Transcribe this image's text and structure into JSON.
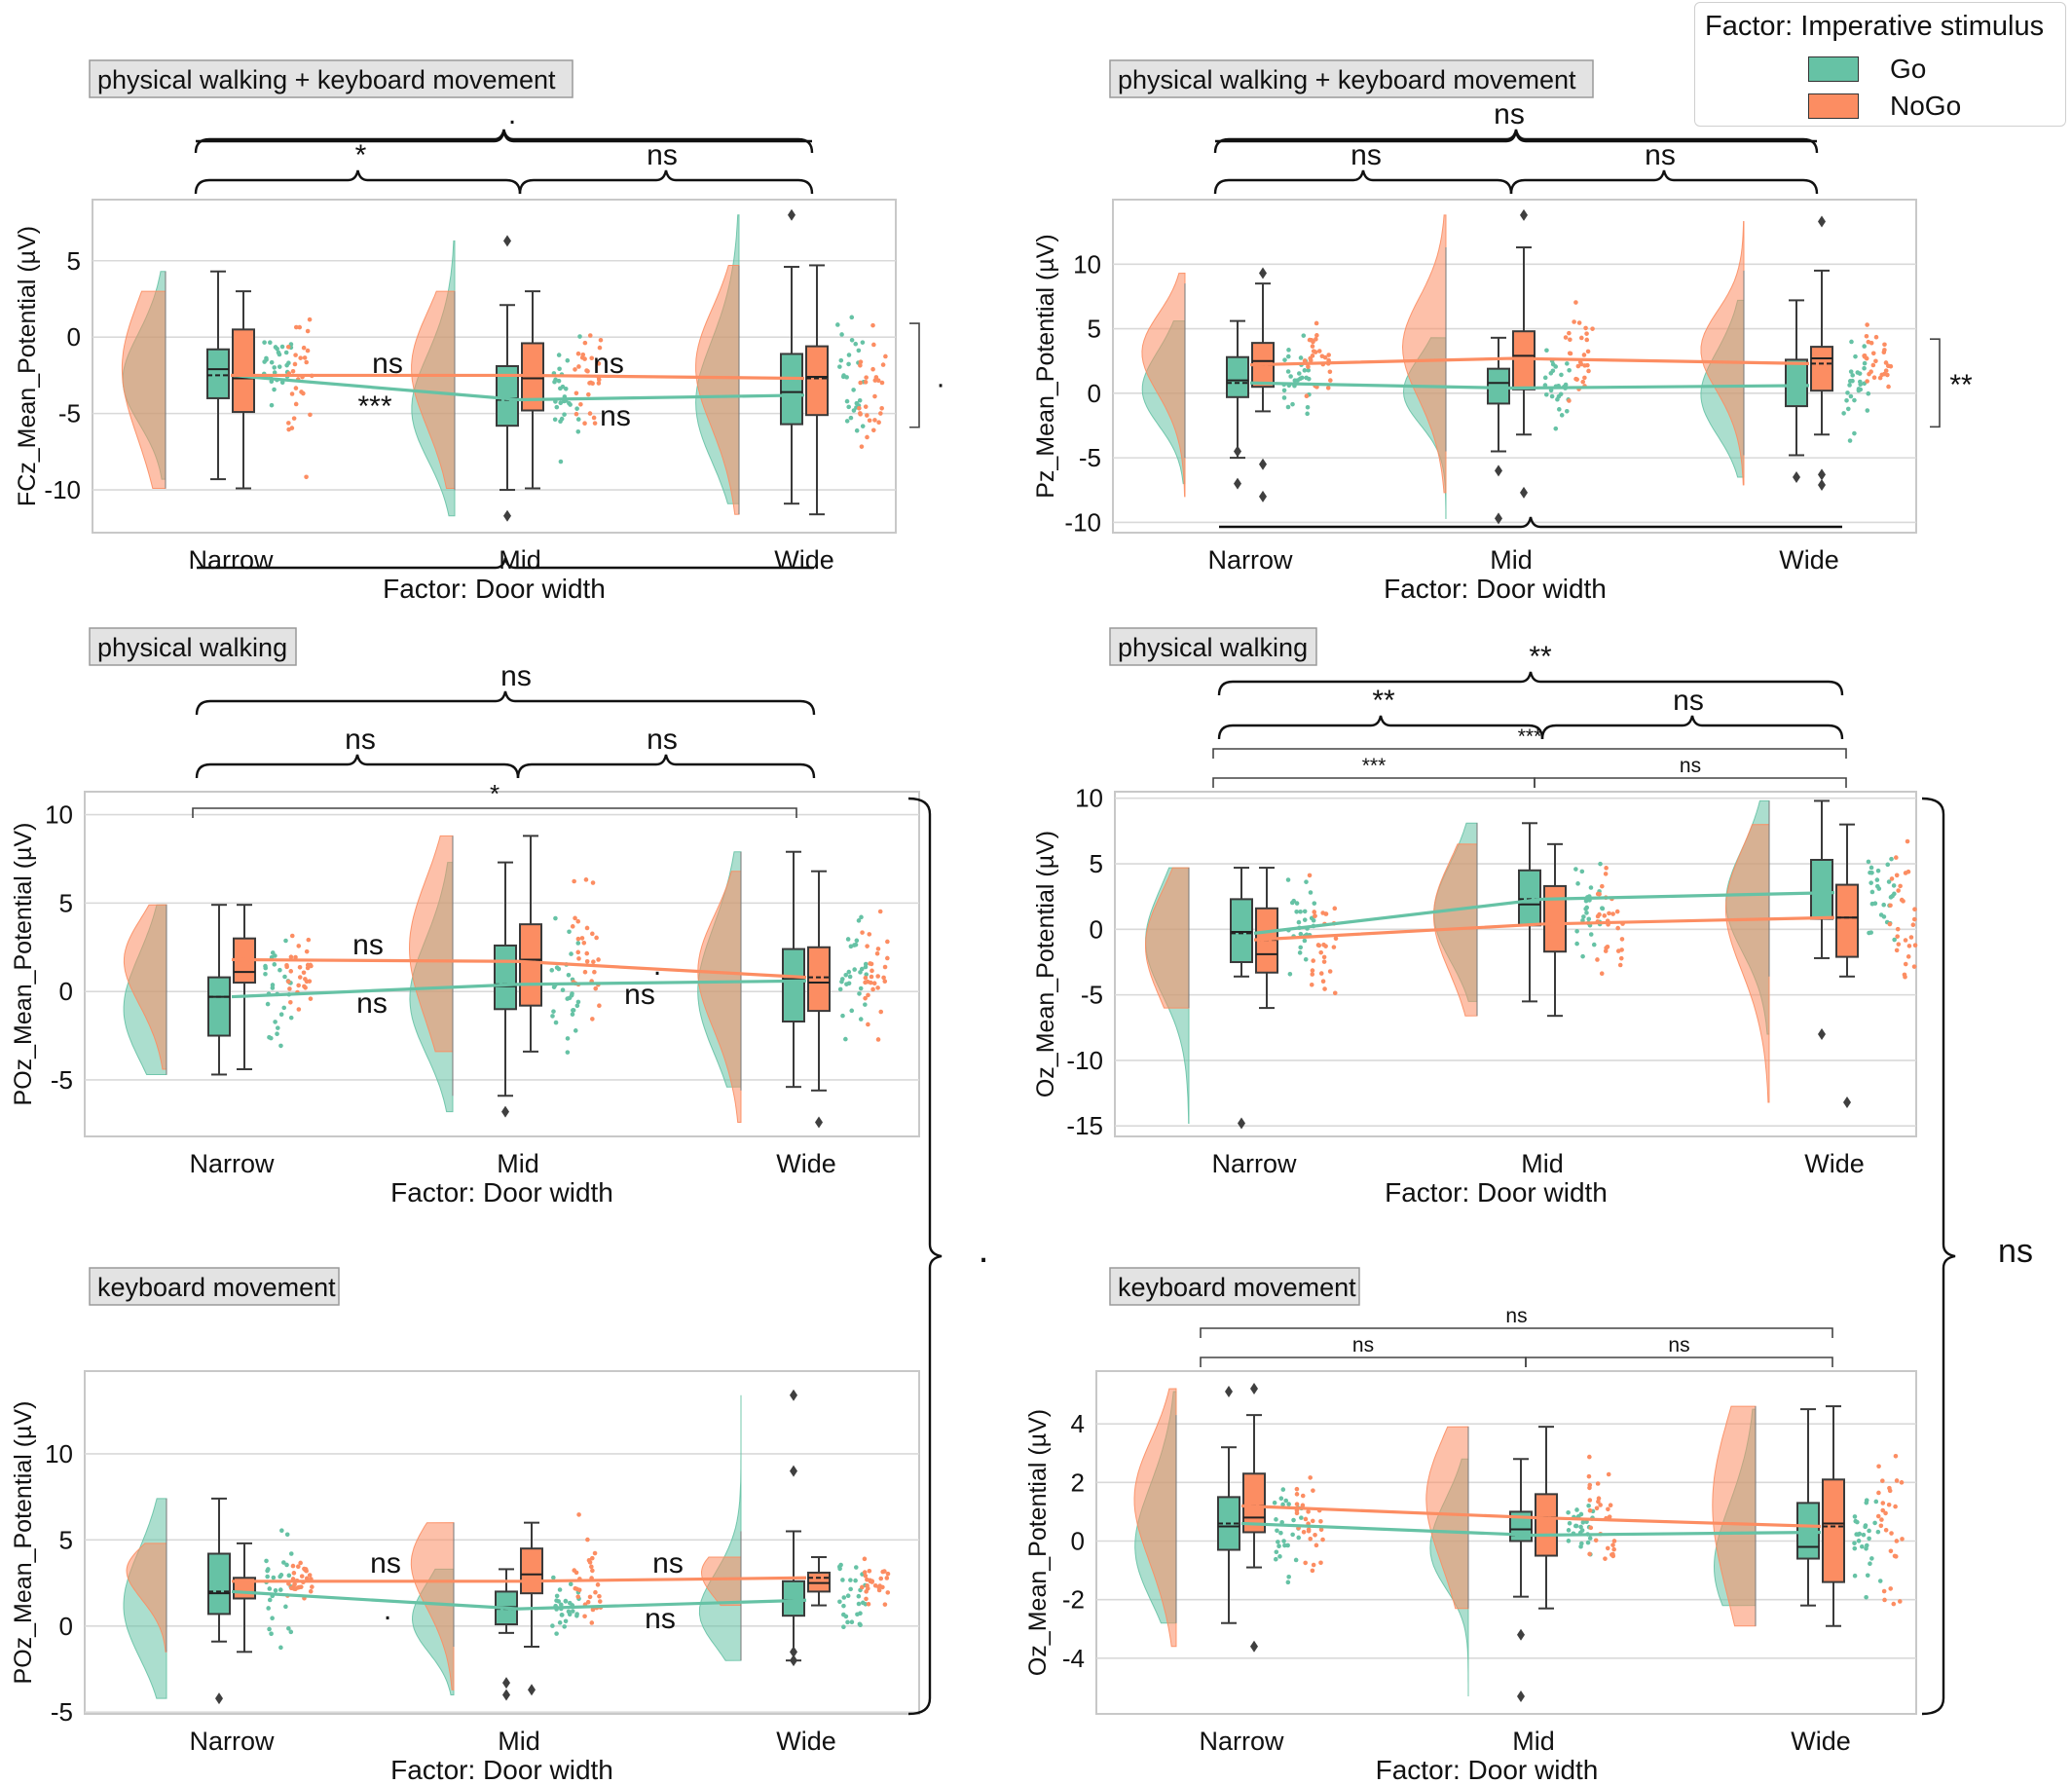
{
  "colors": {
    "go": "#66c2a5",
    "nogo": "#fc8d62",
    "grid": "#d9d9d9",
    "frame": "#c8c8c8",
    "outlier": "#3f3f3f"
  },
  "legend": {
    "title": "Factor: Imperative stimulus",
    "items": [
      {
        "label": "Go",
        "color": "#66c2a5"
      },
      {
        "label": "NoGo",
        "color": "#fc8d62"
      }
    ]
  },
  "chart_data": [
    {
      "type": "box",
      "panel_title": "physical walking + keyboard movement",
      "ylabel": "FCz_Mean_Potential (µV)",
      "xlabel": "Factor: Door width",
      "categories": [
        "Narrow",
        "Mid",
        "Wide"
      ],
      "ylim": [
        -12.8,
        9.0
      ],
      "yticks": [
        -10,
        -5,
        0,
        5
      ],
      "series": [
        {
          "name": "Go",
          "means": [
            -2.5,
            -4.1,
            -3.8
          ],
          "medians": [
            -2.1,
            -4.0,
            -3.6
          ],
          "boxes": [
            {
              "q1": -4.0,
              "q3": -0.8,
              "lo": -9.3,
              "hi": 4.3,
              "outliers": []
            },
            {
              "q1": -5.8,
              "q3": -1.9,
              "lo": -10.0,
              "hi": 2.1,
              "outliers": [
                -11.7,
                6.3
              ]
            },
            {
              "q1": -5.7,
              "q3": -1.1,
              "lo": -10.9,
              "hi": 4.6,
              "outliers": [
                8.0
              ]
            }
          ]
        },
        {
          "name": "NoGo",
          "means": [
            -2.5,
            -2.5,
            -2.7
          ],
          "medians": [
            -2.7,
            -2.7,
            -2.6
          ],
          "boxes": [
            {
              "q1": -4.9,
              "q3": 0.5,
              "lo": -9.9,
              "hi": 3.0,
              "outliers": []
            },
            {
              "q1": -4.8,
              "q3": -0.4,
              "lo": -9.9,
              "hi": 3.0,
              "outliers": []
            },
            {
              "q1": -5.1,
              "q3": -0.6,
              "lo": -11.6,
              "hi": 4.7,
              "outliers": []
            }
          ]
        }
      ],
      "annotations": {
        "brace_top": ".",
        "brace_left": "*",
        "brace_right": "ns",
        "line_labels": [
          "ns",
          "***",
          "ns",
          "ns"
        ],
        "side_label": "."
      }
    },
    {
      "type": "box",
      "panel_title": "physical walking + keyboard movement",
      "ylabel": "Pz_Mean_Potential (µV)",
      "xlabel": "Factor: Door width",
      "categories": [
        "Narrow",
        "Mid",
        "Wide"
      ],
      "ylim": [
        -10.8,
        15.0
      ],
      "yticks": [
        -10,
        -5,
        0,
        5,
        10
      ],
      "series": [
        {
          "name": "Go",
          "means": [
            0.8,
            0.4,
            0.6
          ],
          "medians": [
            1.0,
            0.8,
            0.6
          ],
          "boxes": [
            {
              "q1": -0.3,
              "q3": 2.8,
              "lo": -5.0,
              "hi": 5.6,
              "outliers": [
                -4.5,
                -7.0
              ]
            },
            {
              "q1": -0.8,
              "q3": 1.9,
              "lo": -4.5,
              "hi": 4.3,
              "outliers": [
                -6.0,
                -9.7
              ]
            },
            {
              "q1": -1.0,
              "q3": 2.6,
              "lo": -4.8,
              "hi": 7.2,
              "outliers": [
                -6.5
              ]
            }
          ]
        },
        {
          "name": "NoGo",
          "means": [
            2.2,
            2.7,
            2.3
          ],
          "medians": [
            2.5,
            2.9,
            2.7
          ],
          "boxes": [
            {
              "q1": 0.5,
              "q3": 3.9,
              "lo": -1.4,
              "hi": 8.5,
              "outliers": [
                9.3,
                -5.5,
                -8.0
              ]
            },
            {
              "q1": 0.3,
              "q3": 4.8,
              "lo": -3.2,
              "hi": 11.3,
              "outliers": [
                13.8,
                -7.7
              ]
            },
            {
              "q1": 0.2,
              "q3": 3.6,
              "lo": -3.2,
              "hi": 9.5,
              "outliers": [
                13.3,
                -6.3,
                -7.1
              ]
            }
          ]
        }
      ],
      "annotations": {
        "brace_top": "ns",
        "brace_left": "ns",
        "brace_right": "ns",
        "line_labels": [],
        "side_label": "**"
      }
    },
    {
      "type": "box",
      "panel_title": "physical walking",
      "ylabel": "POz_Mean_Potential (µV)",
      "xlabel": "Factor: Door width",
      "categories": [
        "Narrow",
        "Mid",
        "Wide"
      ],
      "ylim": [
        -8.2,
        11.3
      ],
      "yticks": [
        -5,
        0,
        5,
        10
      ],
      "series": [
        {
          "name": "Go",
          "means": [
            -0.3,
            0.4,
            0.6
          ],
          "medians": [
            -0.3,
            0.3,
            0.7
          ],
          "boxes": [
            {
              "q1": -2.5,
              "q3": 0.8,
              "lo": -4.7,
              "hi": 4.9,
              "outliers": []
            },
            {
              "q1": -1.0,
              "q3": 2.6,
              "lo": -5.9,
              "hi": 7.3,
              "outliers": [
                -6.8
              ]
            },
            {
              "q1": -1.7,
              "q3": 2.4,
              "lo": -5.4,
              "hi": 7.9,
              "outliers": []
            }
          ]
        },
        {
          "name": "NoGo",
          "means": [
            1.8,
            1.7,
            0.8
          ],
          "medians": [
            1.1,
            1.8,
            0.5
          ],
          "boxes": [
            {
              "q1": 0.5,
              "q3": 3.0,
              "lo": -4.4,
              "hi": 4.9,
              "outliers": []
            },
            {
              "q1": -0.8,
              "q3": 3.8,
              "lo": -3.4,
              "hi": 8.8,
              "outliers": []
            },
            {
              "q1": -1.1,
              "q3": 2.5,
              "lo": -5.6,
              "hi": 6.8,
              "outliers": [
                -7.4
              ]
            }
          ]
        }
      ],
      "annotations": {
        "brace_top": "ns",
        "brace_left": "ns",
        "brace_right": "ns",
        "pair_label": "*",
        "line_labels": [
          "ns",
          "ns",
          ".",
          "ns"
        ]
      }
    },
    {
      "type": "box",
      "panel_title": "physical walking",
      "ylabel": "Oz_Mean_Potential (µV)",
      "xlabel": "Factor: Door width",
      "categories": [
        "Narrow",
        "Mid",
        "Wide"
      ],
      "ylim": [
        -15.8,
        10.5
      ],
      "yticks": [
        -15,
        -10,
        -5,
        0,
        5,
        10
      ],
      "series": [
        {
          "name": "Go",
          "means": [
            -0.3,
            2.3,
            2.8
          ],
          "medians": [
            -0.2,
            1.9,
            2.8
          ],
          "boxes": [
            {
              "q1": -2.5,
              "q3": 2.3,
              "lo": -3.6,
              "hi": 4.7,
              "outliers": [
                -14.8
              ]
            },
            {
              "q1": 0.3,
              "q3": 4.5,
              "lo": -5.5,
              "hi": 8.1,
              "outliers": []
            },
            {
              "q1": 0.8,
              "q3": 5.3,
              "lo": -2.2,
              "hi": 9.8,
              "outliers": [
                -8.0
              ]
            }
          ]
        },
        {
          "name": "NoGo",
          "means": [
            -0.8,
            0.4,
            0.9
          ],
          "medians": [
            -1.9,
            0.4,
            0.9
          ],
          "boxes": [
            {
              "q1": -3.3,
              "q3": 1.6,
              "lo": -6.0,
              "hi": 4.7,
              "outliers": []
            },
            {
              "q1": -1.7,
              "q3": 3.3,
              "lo": -6.6,
              "hi": 6.5,
              "outliers": []
            },
            {
              "q1": -2.1,
              "q3": 3.4,
              "lo": -3.6,
              "hi": 8.0,
              "outliers": [
                -13.2
              ]
            }
          ]
        }
      ],
      "annotations": {
        "brace_top": "**",
        "brace_left": "**",
        "brace_right": "ns",
        "pair_labels": [
          "***",
          "ns",
          "***"
        ],
        "line_labels": []
      }
    },
    {
      "type": "box",
      "panel_title": "keyboard movement",
      "ylabel": "POz_Mean_Potential (µV)",
      "xlabel": "Factor: Door width",
      "categories": [
        "Narrow",
        "Mid",
        "Wide"
      ],
      "ylim": [
        -5.1,
        14.8
      ],
      "yticks": [
        -5,
        0,
        5,
        10
      ],
      "series": [
        {
          "name": "Go",
          "means": [
            2.0,
            1.0,
            1.5
          ],
          "medians": [
            1.9,
            1.1,
            1.5
          ],
          "boxes": [
            {
              "q1": 0.7,
              "q3": 4.2,
              "lo": -0.9,
              "hi": 7.4,
              "outliers": [
                -4.2
              ]
            },
            {
              "q1": 0.1,
              "q3": 2.0,
              "lo": -0.4,
              "hi": 3.3,
              "outliers": [
                -3.3,
                -4.0
              ]
            },
            {
              "q1": 0.6,
              "q3": 2.6,
              "lo": -2.0,
              "hi": 5.5,
              "outliers": [
                13.4,
                9.0,
                -1.5,
                -2.0
              ]
            }
          ]
        },
        {
          "name": "NoGo",
          "means": [
            2.6,
            2.6,
            2.8
          ],
          "medians": [
            2.6,
            3.0,
            2.5
          ],
          "boxes": [
            {
              "q1": 1.6,
              "q3": 2.8,
              "lo": -1.5,
              "hi": 4.8,
              "outliers": []
            },
            {
              "q1": 1.9,
              "q3": 4.5,
              "lo": -1.2,
              "hi": 6.0,
              "outliers": [
                -3.7
              ]
            },
            {
              "q1": 2.0,
              "q3": 3.1,
              "lo": 1.2,
              "hi": 4.0,
              "outliers": []
            }
          ]
        }
      ],
      "annotations": {
        "line_labels": [
          "ns",
          ".",
          "ns",
          "ns"
        ]
      }
    },
    {
      "type": "box",
      "panel_title": "keyboard movement",
      "ylabel": "Oz_Mean_Potential (µV)",
      "xlabel": "Factor: Door width",
      "categories": [
        "Narrow",
        "Mid",
        "Wide"
      ],
      "ylim": [
        -5.9,
        5.8
      ],
      "yticks": [
        -4,
        -2,
        0,
        2,
        4
      ],
      "series": [
        {
          "name": "Go",
          "means": [
            0.6,
            0.2,
            0.3
          ],
          "medians": [
            0.5,
            0.4,
            -0.2
          ],
          "boxes": [
            {
              "q1": -0.3,
              "q3": 1.5,
              "lo": -2.8,
              "hi": 3.2,
              "outliers": [
                5.1
              ]
            },
            {
              "q1": 0.0,
              "q3": 1.0,
              "lo": -1.9,
              "hi": 2.8,
              "outliers": [
                -3.2,
                -5.3
              ]
            },
            {
              "q1": -0.6,
              "q3": 1.3,
              "lo": -2.2,
              "hi": 4.5,
              "outliers": []
            }
          ]
        },
        {
          "name": "NoGo",
          "means": [
            1.2,
            0.8,
            0.5
          ],
          "medians": [
            0.8,
            0.8,
            0.6
          ],
          "boxes": [
            {
              "q1": 0.3,
              "q3": 2.3,
              "lo": -0.9,
              "hi": 4.3,
              "outliers": [
                5.2,
                -3.6
              ]
            },
            {
              "q1": -0.5,
              "q3": 1.6,
              "lo": -2.3,
              "hi": 3.9,
              "outliers": []
            },
            {
              "q1": -1.4,
              "q3": 2.1,
              "lo": -2.9,
              "hi": 4.6,
              "outliers": []
            }
          ]
        }
      ],
      "annotations": {
        "pair_labels": [
          "ns",
          "ns",
          "ns"
        ],
        "line_labels": []
      }
    }
  ],
  "group_brackets": {
    "left": ".",
    "right": "ns"
  }
}
